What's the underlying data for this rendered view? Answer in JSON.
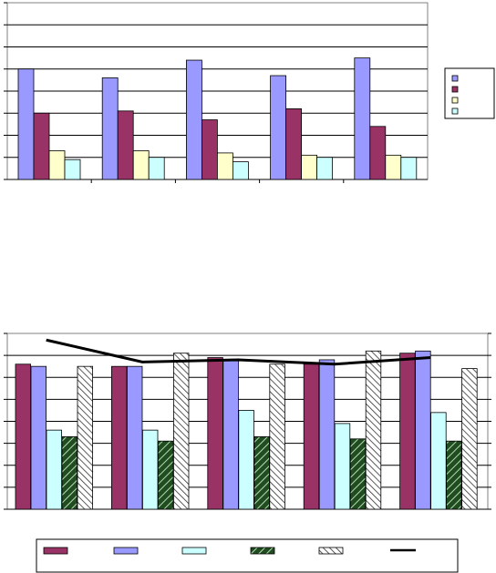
{
  "colors": {
    "s1": "#9999FF",
    "s2": "#993366",
    "s3": "#FFFFCC",
    "s4": "#CCFFFF",
    "grid": "#000000",
    "line": "#000000"
  },
  "chart_data": [
    {
      "type": "bar",
      "title": "",
      "xlabel": "",
      "ylabel": "",
      "categories": [
        "",
        "",
        "",
        "",
        ""
      ],
      "ylim": [
        0,
        8
      ],
      "grid": true,
      "legend": "right",
      "series": [
        {
          "values": [
            5.0,
            4.6,
            5.4,
            4.7,
            5.5
          ]
        },
        {
          "values": [
            3.0,
            3.1,
            2.7,
            3.2,
            2.4
          ]
        },
        {
          "values": [
            1.3,
            1.3,
            1.2,
            1.1,
            1.1
          ]
        },
        {
          "values": [
            0.9,
            1.0,
            0.8,
            1.0,
            1.0
          ]
        }
      ]
    },
    {
      "type": "bar",
      "title": "",
      "xlabel": "",
      "ylabel": "",
      "categories": [
        "",
        "",
        "",
        "",
        ""
      ],
      "ylim": [
        0,
        8
      ],
      "grid": true,
      "legend": "bottom",
      "series": [
        {
          "values": [
            6.6,
            6.5,
            6.9,
            6.6,
            7.1
          ]
        },
        {
          "values": [
            6.5,
            6.5,
            6.8,
            6.8,
            7.2
          ]
        },
        {
          "values": [
            3.6,
            3.6,
            4.5,
            3.9,
            4.4
          ]
        },
        {
          "values": [
            3.3,
            3.1,
            3.3,
            3.2,
            3.1
          ]
        },
        {
          "values": [
            6.5,
            7.1,
            6.6,
            7.2,
            6.4
          ]
        }
      ],
      "line_series": {
        "values": [
          7.7,
          6.7,
          6.8,
          6.6,
          6.9
        ],
        "ylim": [
          0,
          8
        ]
      }
    }
  ]
}
